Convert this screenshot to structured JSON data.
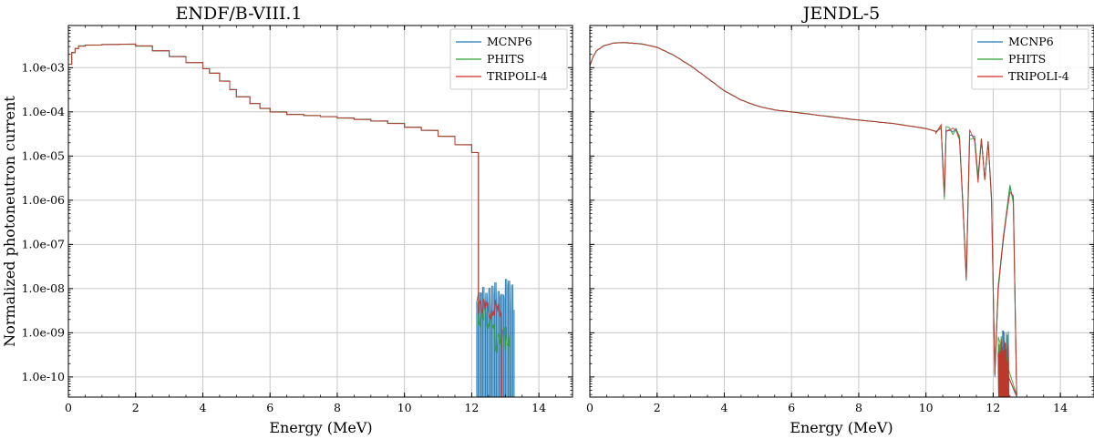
{
  "figure": {
    "ylabel": "Normalized photoneutron current"
  },
  "colors": {
    "MCNP6": "#1f77b4",
    "PHITS": "#2ca02c",
    "TRIPOLI-4": "#d62728",
    "grid": "#c8c8c8"
  },
  "chart_data": [
    {
      "type": "line",
      "title": "ENDF/B-VIII.1",
      "xlabel": "Energy (MeV)",
      "ylabel": "Normalized photoneutron current",
      "xlim": [
        0,
        15
      ],
      "ylim": [
        3.5e-11,
        0.009
      ],
      "yscale": "log",
      "grid": true,
      "legend_position": "top-right",
      "xticks": [
        0,
        2,
        4,
        6,
        8,
        10,
        12,
        14
      ],
      "xtick_labels": [
        "0",
        "2",
        "4",
        "6",
        "8",
        "10",
        "12",
        "14"
      ],
      "yticks": [
        1e-10,
        1e-09,
        1e-08,
        1e-07,
        1e-06,
        1e-05,
        0.0001,
        0.001
      ],
      "ytick_labels": [
        "1.0e-10",
        "1.0e-09",
        "1.0e-08",
        "1.0e-07",
        "1.0e-06",
        "1.0e-05",
        "1.0e-04",
        "1.0e-03"
      ],
      "legend": [
        "MCNP6",
        "PHITS",
        "TRIPOLI-4"
      ],
      "curve_shape": "step",
      "main_curve": {
        "x": [
          0,
          0.1,
          0.2,
          0.3,
          0.5,
          1.0,
          1.5,
          2.0,
          2.5,
          3.0,
          3.5,
          4.0,
          4.2,
          4.5,
          4.8,
          5.0,
          5.4,
          5.7,
          6.0,
          6.5,
          7.0,
          7.5,
          8.0,
          8.5,
          9.0,
          9.5,
          10.0,
          10.5,
          11.0,
          11.5,
          12.0,
          12.2
        ],
        "y": [
          0.0012,
          0.0022,
          0.0027,
          0.0031,
          0.00325,
          0.00335,
          0.0034,
          0.0031,
          0.0024,
          0.0018,
          0.0013,
          0.00095,
          0.00075,
          0.0005,
          0.00032,
          0.00022,
          0.000155,
          0.00012,
          0.0001,
          8.8e-05,
          8.2e-05,
          7.8e-05,
          7.3e-05,
          6.8e-05,
          6.2e-05,
          5.5e-05,
          4.5e-05,
          3.8e-05,
          2.8e-05,
          1.8e-05,
          1.2e-05,
          1.2e-05
        ]
      },
      "tail_region": {
        "x_range": [
          12.15,
          13.3
        ],
        "PHITS_level": 2e-09,
        "TRIPOLI-4_level": 3.5e-09,
        "noise_floor": 3.5e-11
      }
    },
    {
      "type": "line",
      "title": "JENDL-5",
      "xlabel": "Energy (MeV)",
      "xlim": [
        0,
        15
      ],
      "ylim": [
        3.5e-11,
        0.009
      ],
      "yscale": "log",
      "grid": true,
      "legend_position": "top-right",
      "xticks": [
        0,
        2,
        4,
        6,
        8,
        10,
        12,
        14
      ],
      "xtick_labels": [
        "0",
        "2",
        "4",
        "6",
        "8",
        "10",
        "12",
        "14"
      ],
      "legend": [
        "MCNP6",
        "PHITS",
        "TRIPOLI-4"
      ],
      "curve_shape": "smooth",
      "main_curve": {
        "x": [
          0,
          0.1,
          0.2,
          0.4,
          0.7,
          1.0,
          1.5,
          2.0,
          2.5,
          3.0,
          3.5,
          4.0,
          4.5,
          5.0,
          5.5,
          6.0,
          7.0,
          8.0,
          9.0,
          10.0,
          10.3
        ],
        "y": [
          0.0011,
          0.0018,
          0.0024,
          0.0031,
          0.0036,
          0.0037,
          0.0035,
          0.0029,
          0.0019,
          0.0011,
          0.00058,
          0.0003,
          0.000185,
          0.000135,
          0.00011,
          0.0001,
          8e-05,
          6.5e-05,
          5.5e-05,
          4.2e-05,
          3.6e-05
        ]
      },
      "resonances": {
        "x": [
          10.3,
          10.45,
          10.5,
          10.55,
          10.6,
          10.7,
          10.8,
          10.9,
          11.0,
          11.1,
          11.2,
          11.3,
          11.45,
          11.55,
          11.65,
          11.75,
          11.85,
          11.95,
          12.05,
          12.15,
          12.3,
          12.5,
          12.6,
          12.7
        ],
        "y": [
          3.6e-05,
          4.2e-05,
          8e-06,
          1.2e-06,
          3.5e-05,
          4e-05,
          3.5e-05,
          4.2e-05,
          2.5e-05,
          8e-07,
          1.5e-08,
          3e-05,
          2.8e-05,
          3e-06,
          2.5e-05,
          3e-06,
          2e-05,
          1.2e-06,
          1e-10,
          1e-08,
          1.2e-07,
          2e-06,
          1e-06,
          3.5e-11
        ]
      }
    }
  ]
}
